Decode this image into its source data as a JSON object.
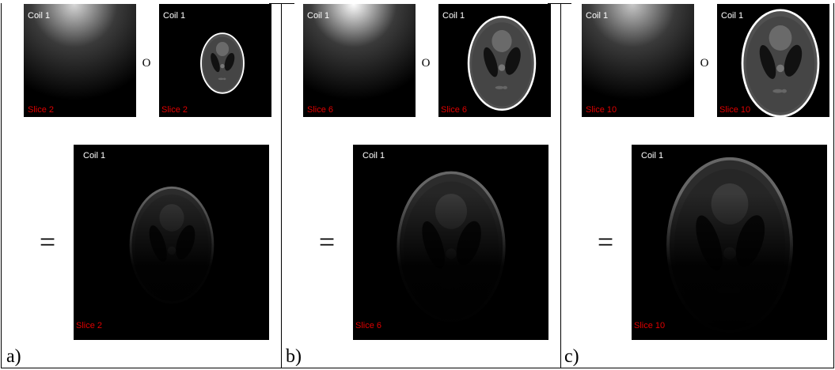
{
  "panels": [
    {
      "label": "a)",
      "operator": "O",
      "equals": "=",
      "coil_image": {
        "title": "Coil 1",
        "slice": "Slice 2"
      },
      "phantom_image": {
        "title": "Coil 1",
        "slice": "Slice 2"
      },
      "product_image": {
        "title": "Coil 1",
        "slice": "Slice 2"
      }
    },
    {
      "label": "b)",
      "operator": "O",
      "equals": "=",
      "coil_image": {
        "title": "Coil 1",
        "slice": "Slice 6"
      },
      "phantom_image": {
        "title": "Coil 1",
        "slice": "Slice 6"
      },
      "product_image": {
        "title": "Coil 1",
        "slice": "Slice 6"
      }
    },
    {
      "label": "c)",
      "operator": "O",
      "equals": "=",
      "coil_image": {
        "title": "Coil 1",
        "slice": "Slice 10"
      },
      "phantom_image": {
        "title": "Coil 1",
        "slice": "Slice 10"
      },
      "product_image": {
        "title": "Coil 1",
        "slice": "Slice 10"
      }
    }
  ]
}
